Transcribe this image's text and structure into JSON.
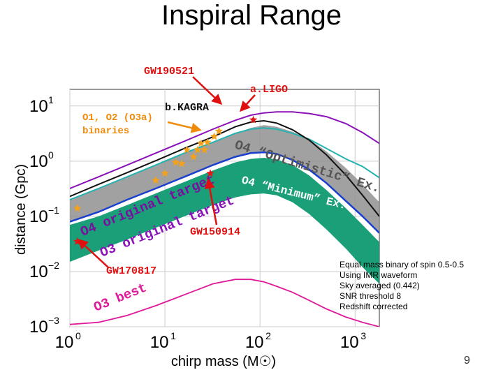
{
  "slide": {
    "title": "Inspiral Range",
    "page_number": "9",
    "notes": [
      "Equal mass binary of spin 0.5-0.5",
      "Using IMR waveform",
      "Sky averaged (0.442)",
      "SNR threshold 8",
      "Redshift corrected"
    ]
  },
  "colors": {
    "o3_band": "#1a9f78",
    "ligo_o4": "#8a12b8",
    "o4_optimistic": "#25b2b0",
    "o4_minimum": "#1a3fcf",
    "o3_best": "#e0189a",
    "kagra": "#111111",
    "o4_band": "#909090",
    "star_o12": "#f4a11b",
    "star_events": "#e01818",
    "annotation_red": "#e01010",
    "annotation_orange": "#f08a0a"
  },
  "chart_data": {
    "type": "line",
    "xlabel": "chirp mass (M☉)",
    "ylabel": "distance (Gpc)",
    "x_scale": "log",
    "y_scale": "log",
    "xlim": [
      1,
      1800
    ],
    "ylim": [
      0.001,
      20
    ],
    "x_ticks": [
      {
        "value": 1,
        "base": "10",
        "exp": "0"
      },
      {
        "value": 10,
        "base": "10",
        "exp": "1"
      },
      {
        "value": 100,
        "base": "10",
        "exp": "2"
      },
      {
        "value": 1000,
        "base": "10",
        "exp": "3"
      }
    ],
    "y_ticks": [
      {
        "value": 10,
        "base": "10",
        "exp": "1"
      },
      {
        "value": 1,
        "base": "10",
        "exp": "0"
      },
      {
        "value": 0.1,
        "base": "10",
        "exp": "−1"
      },
      {
        "value": 0.01,
        "base": "10",
        "exp": "−2"
      },
      {
        "value": 0.001,
        "base": "10",
        "exp": "−3"
      }
    ],
    "grid": true,
    "series": [
      {
        "key": "o3_band",
        "fill": true,
        "color_key": "o3_band",
        "x": [
          1,
          2,
          4,
          8,
          16,
          32,
          55,
          80,
          110,
          150,
          220,
          330,
          500,
          800,
          1200,
          1800
        ],
        "upper": [
          0.07,
          0.1,
          0.16,
          0.26,
          0.42,
          0.68,
          0.95,
          1.1,
          1.15,
          1.08,
          0.85,
          0.55,
          0.3,
          0.14,
          0.07,
          0.034
        ],
        "lower": [
          0.015,
          0.024,
          0.038,
          0.062,
          0.1,
          0.16,
          0.22,
          0.25,
          0.26,
          0.24,
          0.18,
          0.11,
          0.058,
          0.026,
          0.012,
          0.006
        ]
      },
      {
        "key": "o4_band",
        "fill": true,
        "color_key": "o4_band",
        "x": [
          1,
          2,
          4,
          8,
          16,
          32,
          55,
          80,
          110,
          150,
          220,
          330,
          500,
          800,
          1200,
          1800
        ],
        "upper": [
          0.2,
          0.32,
          0.52,
          0.85,
          1.4,
          2.2,
          3.2,
          4,
          4.5,
          4.2,
          3.4,
          2.5,
          1.5,
          0.75,
          0.38,
          0.18
        ],
        "lower": [
          0.08,
          0.12,
          0.2,
          0.32,
          0.52,
          0.85,
          1.2,
          1.4,
          1.45,
          1.35,
          1.05,
          0.7,
          0.4,
          0.19,
          0.1,
          0.05
        ]
      },
      {
        "key": "o4_minimum",
        "color_key": "o4_minimum",
        "x": [
          1,
          2,
          4,
          8,
          16,
          32,
          55,
          80,
          110,
          150,
          220,
          330,
          500,
          800,
          1200,
          1800
        ],
        "y": [
          0.08,
          0.12,
          0.2,
          0.32,
          0.52,
          0.85,
          1.2,
          1.4,
          1.45,
          1.35,
          1.05,
          0.7,
          0.4,
          0.19,
          0.1,
          0.05
        ]
      },
      {
        "key": "o4_optimistic",
        "color_key": "o4_optimistic",
        "x": [
          1,
          2,
          4,
          8,
          16,
          32,
          55,
          80,
          110,
          150,
          220,
          330,
          500,
          800,
          1200,
          1800
        ],
        "y": [
          0.2,
          0.32,
          0.52,
          0.85,
          1.4,
          2.2,
          3.2,
          3.8,
          4,
          3.8,
          3.2,
          2.5,
          1.7,
          1.1,
          0.8,
          0.5
        ]
      },
      {
        "key": "kagra",
        "color_key": "kagra",
        "x": [
          1,
          2,
          4,
          8,
          16,
          32,
          55,
          80,
          110,
          150,
          220,
          330,
          500,
          800,
          1200,
          1800
        ],
        "y": [
          0.23,
          0.38,
          0.62,
          1.02,
          1.7,
          2.75,
          4.2,
          5.1,
          5.4,
          4.9,
          3.7,
          2.4,
          1.3,
          0.56,
          0.24,
          0.1
        ]
      },
      {
        "key": "ligo_o4",
        "color_key": "ligo_o4",
        "x": [
          1,
          2,
          4,
          8,
          16,
          32,
          55,
          80,
          110,
          150,
          220,
          330,
          500,
          800,
          1200,
          1800
        ],
        "y": [
          0.32,
          0.52,
          0.85,
          1.4,
          2.3,
          3.8,
          5.5,
          6.8,
          7.5,
          7.8,
          7.8,
          7.3,
          6.4,
          4.8,
          3.3,
          2.1
        ]
      },
      {
        "key": "o3_best",
        "color_key": "o3_best",
        "x": [
          1,
          2,
          4,
          8,
          16,
          32,
          55,
          80,
          110,
          150,
          220,
          330,
          500,
          800,
          1200,
          1800
        ],
        "y": [
          0.0011,
          0.0012,
          0.0016,
          0.0024,
          0.0038,
          0.006,
          0.0072,
          0.0072,
          0.0065,
          0.0054,
          0.0042,
          0.003,
          0.0021,
          0.0015,
          0.0012,
          0.001
        ]
      }
    ],
    "stars_o12": [
      {
        "x": 1.2,
        "y": 0.14
      },
      {
        "x": 8,
        "y": 0.45
      },
      {
        "x": 10,
        "y": 0.6
      },
      {
        "x": 13,
        "y": 0.95
      },
      {
        "x": 15,
        "y": 0.9
      },
      {
        "x": 17,
        "y": 1.6
      },
      {
        "x": 20,
        "y": 1.2
      },
      {
        "x": 22,
        "y": 1.6
      },
      {
        "x": 24,
        "y": 2.1
      },
      {
        "x": 26,
        "y": 1.6
      },
      {
        "x": 28,
        "y": 2.2
      },
      {
        "x": 33,
        "y": 2.8
      },
      {
        "x": 37,
        "y": 3.5
      }
    ],
    "stars_events": [
      {
        "x": 1.2,
        "y": 0.035
      },
      {
        "x": 30,
        "y": 0.6
      },
      {
        "x": 85,
        "y": 5.6
      }
    ],
    "curve_labels": {
      "o4_original_target": "O4 original target",
      "o3_original_target": "O3 original target",
      "o4_optimistic": "O4 “Optimistic” Ex.",
      "o4_minimum": "O4 “Minimum” Ex.",
      "o3_best": "O3 best"
    },
    "annotations": {
      "gw190521": "GW190521",
      "aligo": "a.LIGO",
      "bkagra": "b.KAGRA",
      "o12_line1": "O1, O2 (O3a)",
      "o12_line2": "binaries",
      "gw150914": "GW150914",
      "gw170817": "GW170817"
    }
  }
}
